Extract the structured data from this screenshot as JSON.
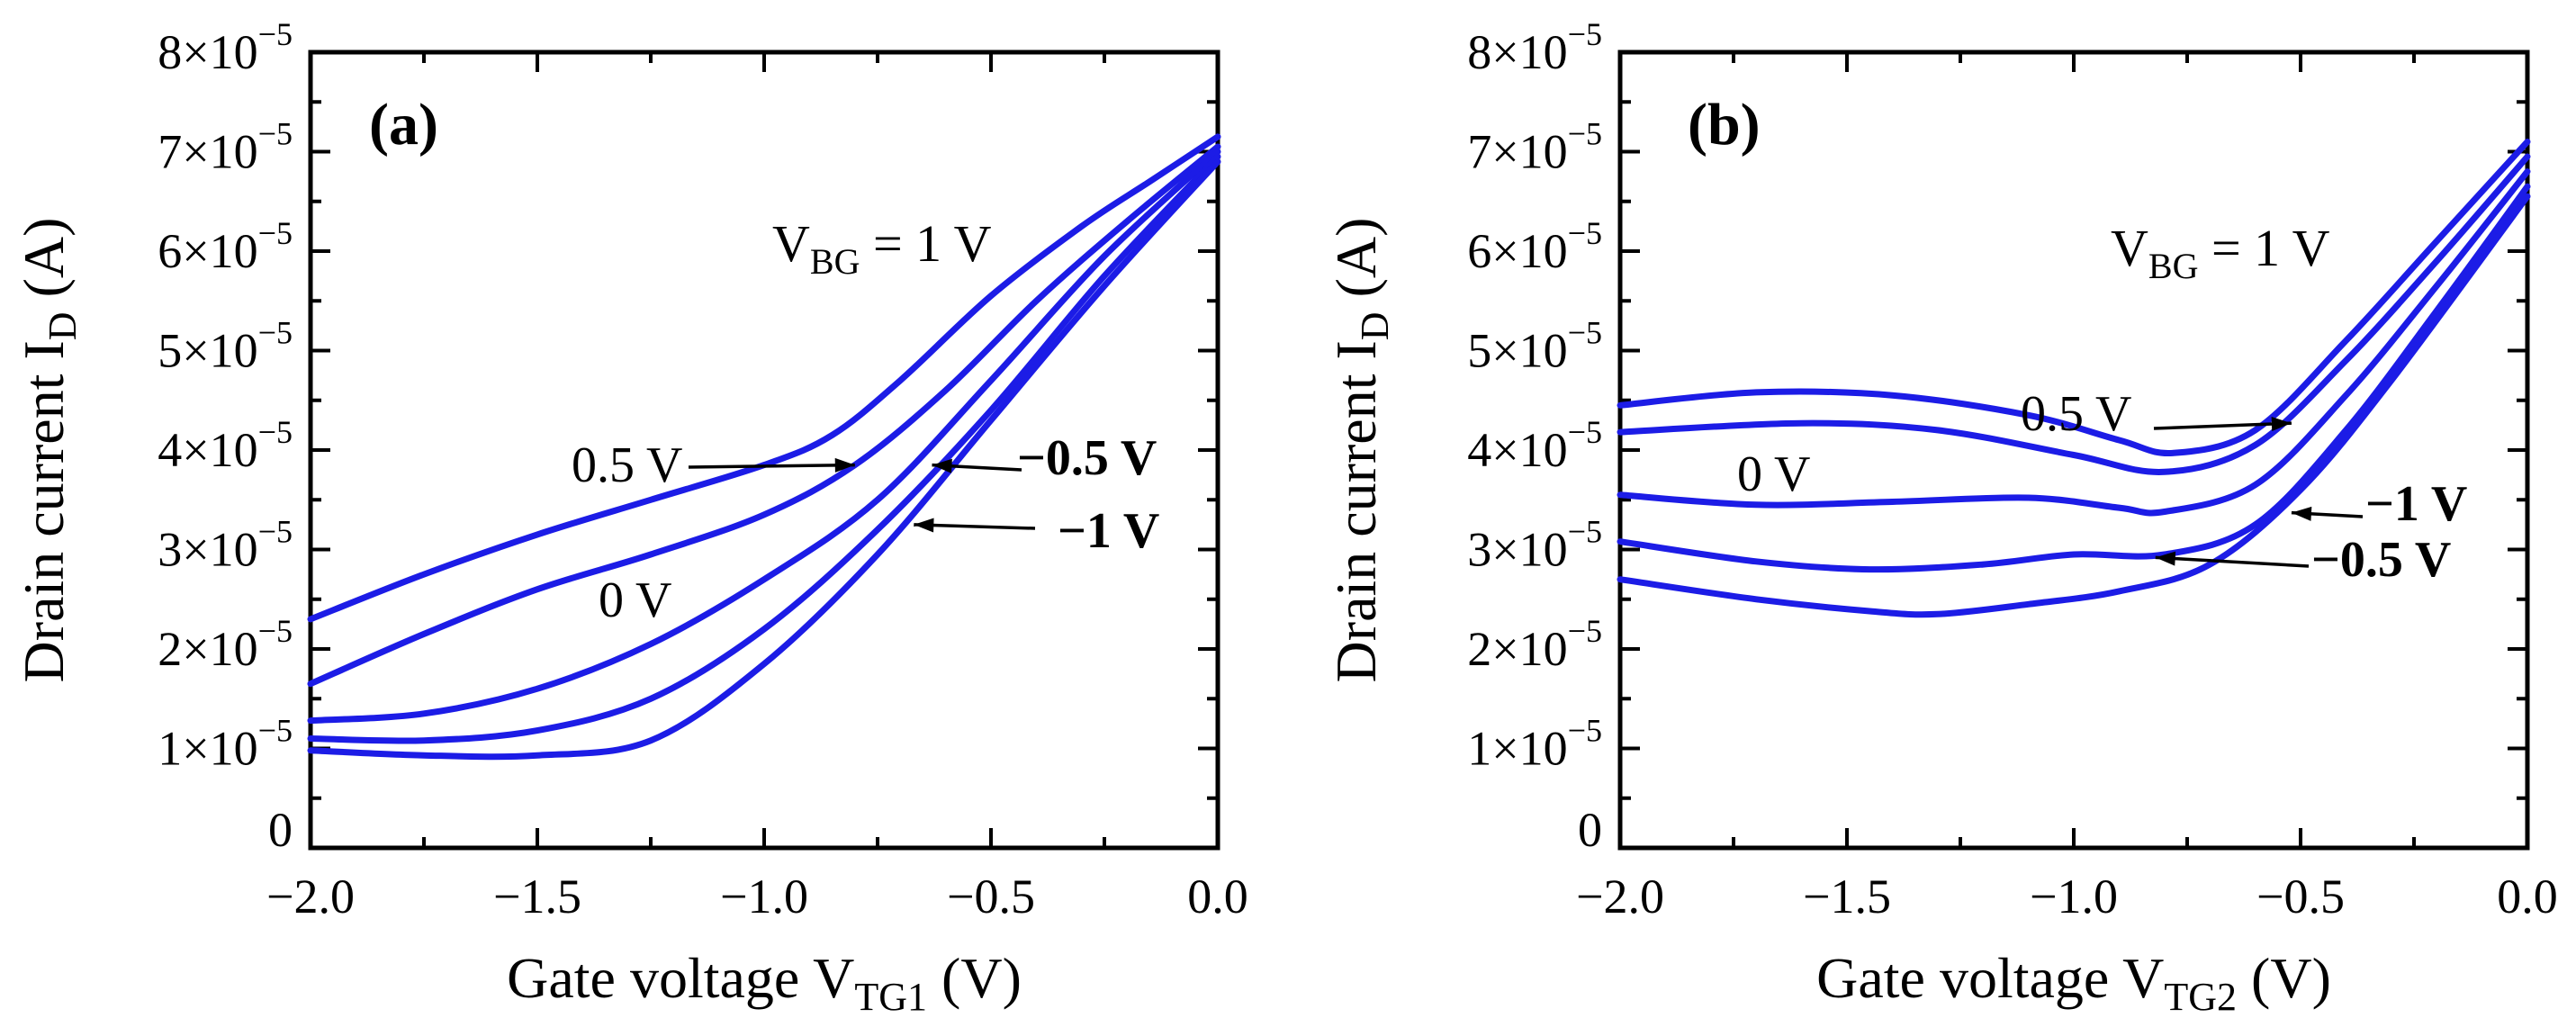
{
  "chart_data": [
    {
      "type": "line",
      "panel_label": "(a)",
      "xlabel": {
        "main": "Gate voltage V",
        "sub": "TG1",
        "unit": " (V)"
      },
      "ylabel": {
        "main": "Drain current I",
        "sub": "D",
        "unit": " (A)"
      },
      "xlim": [
        -2.0,
        0.0
      ],
      "ylim": [
        0,
        8e-05
      ],
      "x_ticks": [
        "-2.0",
        "-1.5",
        "-1.0",
        "-0.5",
        "0.0"
      ],
      "x_tick_labels": [
        "−2.0",
        "−1.5",
        "−1.0",
        "−0.5",
        "0.0"
      ],
      "y_ticks": [
        0,
        1e-05,
        2e-05,
        3e-05,
        4e-05,
        5e-05,
        6e-05,
        7e-05,
        8e-05
      ],
      "y_tick_labels": [
        {
          "base": "0",
          "exp": ""
        },
        {
          "base": "1×10",
          "exp": "−5"
        },
        {
          "base": "2×10",
          "exp": "−5"
        },
        {
          "base": "3×10",
          "exp": "−5"
        },
        {
          "base": "4×10",
          "exp": "−5"
        },
        {
          "base": "5×10",
          "exp": "−5"
        },
        {
          "base": "6×10",
          "exp": "−5"
        },
        {
          "base": "7×10",
          "exp": "−5"
        },
        {
          "base": "8×10",
          "exp": "−5"
        }
      ],
      "series": [
        {
          "name": "VBG = 1 V",
          "x": [
            -2.0,
            -1.75,
            -1.5,
            -1.25,
            -1.0,
            -0.85,
            -0.7,
            -0.5,
            -0.3,
            -0.15,
            0.0
          ],
          "y": [
            2.3e-05,
            2.75e-05,
            3.15e-05,
            3.5e-05,
            3.85e-05,
            4.15e-05,
            4.7e-05,
            5.55e-05,
            6.25e-05,
            6.7e-05,
            7.15e-05
          ]
        },
        {
          "name": "0.5 V",
          "x": [
            -2.0,
            -1.75,
            -1.5,
            -1.25,
            -1.0,
            -0.8,
            -0.6,
            -0.4,
            -0.2,
            0.0
          ],
          "y": [
            1.65e-05,
            2.15e-05,
            2.6e-05,
            2.95e-05,
            3.35e-05,
            3.85e-05,
            4.6e-05,
            5.5e-05,
            6.3e-05,
            7.05e-05
          ]
        },
        {
          "name": "0 V",
          "x": [
            -2.0,
            -1.75,
            -1.5,
            -1.25,
            -1.0,
            -0.75,
            -0.5,
            -0.25,
            0.0
          ],
          "y": [
            1.28e-05,
            1.35e-05,
            1.6e-05,
            2.05e-05,
            2.7e-05,
            3.5e-05,
            4.7e-05,
            5.95e-05,
            7e-05
          ]
        },
        {
          "name": "−0.5 V",
          "x": [
            -2.0,
            -1.75,
            -1.5,
            -1.25,
            -1.0,
            -0.75,
            -0.5,
            -0.25,
            0.0
          ],
          "y": [
            1.1e-05,
            1.08e-05,
            1.18e-05,
            1.5e-05,
            2.2e-05,
            3.2e-05,
            4.4e-05,
            5.75e-05,
            6.95e-05
          ]
        },
        {
          "name": "−1 V",
          "x": [
            -2.0,
            -1.75,
            -1.5,
            -1.25,
            -1.0,
            -0.75,
            -0.5,
            -0.25,
            0.0
          ],
          "y": [
            9.8e-06,
            9.3e-06,
            9.3e-06,
            1.08e-05,
            1.85e-05,
            2.95e-05,
            4.3e-05,
            5.65e-05,
            6.9e-05
          ]
        }
      ],
      "annotations": [
        {
          "text": "V",
          "sub": "BG",
          "rest": " = 1 V",
          "bold": false
        },
        {
          "text": "0.5 V",
          "bold": false,
          "arrow_to": [
            -0.8,
            3.85e-05
          ]
        },
        {
          "text": "0 V",
          "bold": false
        },
        {
          "text": "−0.5 V",
          "bold": true,
          "arrow_to": [
            -0.63,
            3.85e-05
          ]
        },
        {
          "text": "−1 V",
          "bold": true,
          "arrow_to": [
            -0.67,
            3.25e-05
          ]
        }
      ]
    },
    {
      "type": "line",
      "panel_label": "(b)",
      "xlabel": {
        "main": "Gate voltage V",
        "sub": "TG2",
        "unit": " (V)"
      },
      "ylabel": {
        "main": "Drain current I",
        "sub": "D",
        "unit": " (A)"
      },
      "xlim": [
        -2.0,
        0.0
      ],
      "ylim": [
        0,
        8e-05
      ],
      "x_ticks": [
        "-2.0",
        "-1.5",
        "-1.0",
        "-0.5",
        "0.0"
      ],
      "x_tick_labels": [
        "−2.0",
        "−1.5",
        "−1.0",
        "−0.5",
        "0.0"
      ],
      "y_ticks": [
        0,
        1e-05,
        2e-05,
        3e-05,
        4e-05,
        5e-05,
        6e-05,
        7e-05,
        8e-05
      ],
      "y_tick_labels": [
        {
          "base": "0",
          "exp": ""
        },
        {
          "base": "1×10",
          "exp": "−5"
        },
        {
          "base": "2×10",
          "exp": "−5"
        },
        {
          "base": "3×10",
          "exp": "−5"
        },
        {
          "base": "4×10",
          "exp": "−5"
        },
        {
          "base": "5×10",
          "exp": "−5"
        },
        {
          "base": "6×10",
          "exp": "−5"
        },
        {
          "base": "7×10",
          "exp": "−5"
        },
        {
          "base": "8×10",
          "exp": "−5"
        }
      ],
      "series": [
        {
          "name": "VBG = 1 V",
          "x": [
            -2.0,
            -1.7,
            -1.4,
            -1.1,
            -0.9,
            -0.78,
            -0.6,
            -0.4,
            -0.2,
            0.0
          ],
          "y": [
            4.45e-05,
            4.58e-05,
            4.55e-05,
            4.35e-05,
            4.1e-05,
            3.97e-05,
            4.2e-05,
            5.1e-05,
            6.1e-05,
            7.1e-05
          ]
        },
        {
          "name": "0.5 V",
          "x": [
            -2.0,
            -1.6,
            -1.3,
            -1.0,
            -0.8,
            -0.6,
            -0.4,
            -0.2,
            0.0
          ],
          "y": [
            4.18e-05,
            4.27e-05,
            4.2e-05,
            3.95e-05,
            3.78e-05,
            4.05e-05,
            4.9e-05,
            5.9e-05,
            6.95e-05
          ]
        },
        {
          "name": "0 V",
          "x": [
            -2.0,
            -1.7,
            -1.4,
            -1.1,
            -0.9,
            -0.8,
            -0.6,
            -0.4,
            -0.2,
            0.0
          ],
          "y": [
            3.55e-05,
            3.45e-05,
            3.48e-05,
            3.52e-05,
            3.42e-05,
            3.38e-05,
            3.65e-05,
            4.55e-05,
            5.65e-05,
            6.8e-05
          ]
        },
        {
          "name": "−0.5 V",
          "x": [
            -2.0,
            -1.7,
            -1.45,
            -1.2,
            -1.0,
            -0.8,
            -0.6,
            -0.4,
            -0.2,
            0.0
          ],
          "y": [
            3.08e-05,
            2.88e-05,
            2.8e-05,
            2.85e-05,
            2.95e-05,
            2.95e-05,
            3.25e-05,
            4.2e-05,
            5.4e-05,
            6.65e-05
          ]
        },
        {
          "name": "−1 V",
          "x": [
            -2.0,
            -1.7,
            -1.45,
            -1.3,
            -1.1,
            -0.9,
            -0.7,
            -0.5,
            -0.3,
            0.0
          ],
          "y": [
            2.7e-05,
            2.5e-05,
            2.38e-05,
            2.35e-05,
            2.45e-05,
            2.58e-05,
            2.85e-05,
            3.6e-05,
            4.7e-05,
            6.55e-05
          ]
        }
      ],
      "annotations": [
        {
          "text": "V",
          "sub": "BG",
          "rest": " = 1 V",
          "bold": false
        },
        {
          "text": "0.5 V",
          "bold": false,
          "arrow_to": [
            -0.52,
            4.27e-05
          ]
        },
        {
          "text": "0 V",
          "bold": false
        },
        {
          "text": "−1 V",
          "bold": true,
          "arrow_to": [
            -0.52,
            3.37e-05
          ]
        },
        {
          "text": "−0.5 V",
          "bold": true,
          "arrow_to": [
            -0.82,
            2.92e-05
          ]
        }
      ]
    }
  ],
  "colors": {
    "curve": "#1c1ce6",
    "axis": "#000000",
    "background": "#ffffff"
  }
}
